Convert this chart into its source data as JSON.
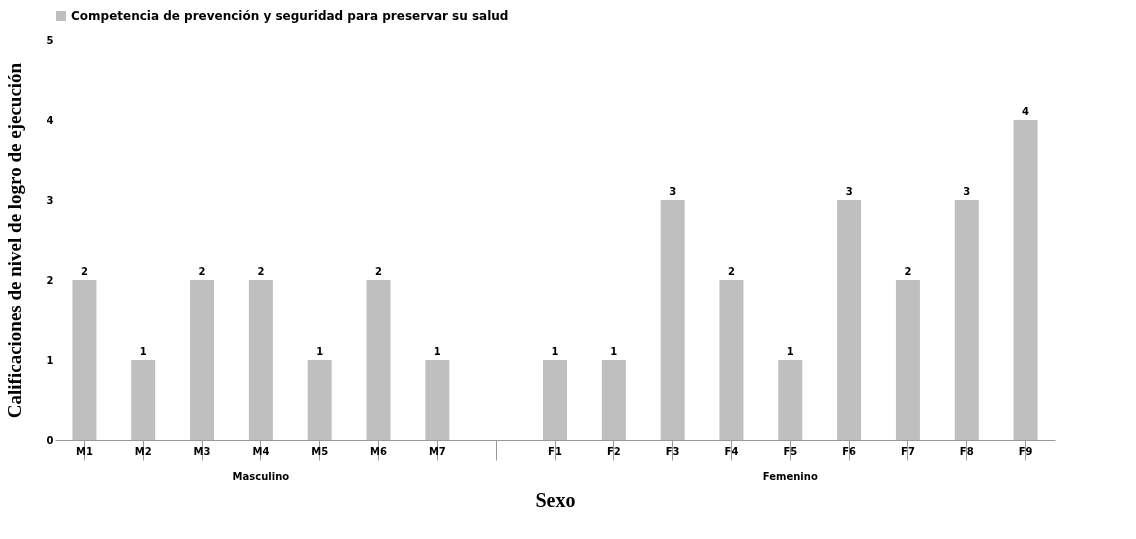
{
  "chart_data": {
    "type": "bar",
    "categories": [
      "M1",
      "M2",
      "M3",
      "M4",
      "M5",
      "M6",
      "M7",
      null,
      "F1",
      "F2",
      "F3",
      "F4",
      "F5",
      "F6",
      "F7",
      "F8",
      "F9"
    ],
    "series": [
      {
        "name": "Competencia de prevención y seguridad para preservar su salud",
        "color": "#bfbfbf",
        "values": [
          2,
          1,
          2,
          2,
          1,
          2,
          1,
          null,
          1,
          1,
          3,
          2,
          1,
          3,
          2,
          3,
          4
        ]
      }
    ],
    "xlabel": "Sexo",
    "ylabel": "Calificaciones de nivel de logro de ejecución",
    "ylim": [
      0,
      5
    ],
    "yticks": [
      0,
      1,
      2,
      3,
      4,
      5
    ],
    "grid": false,
    "legend": "top",
    "data_labels": true,
    "annotations": [
      {
        "text": "Masculino",
        "x": "M4"
      },
      {
        "text": "Femenino",
        "x": "F5"
      }
    ]
  }
}
